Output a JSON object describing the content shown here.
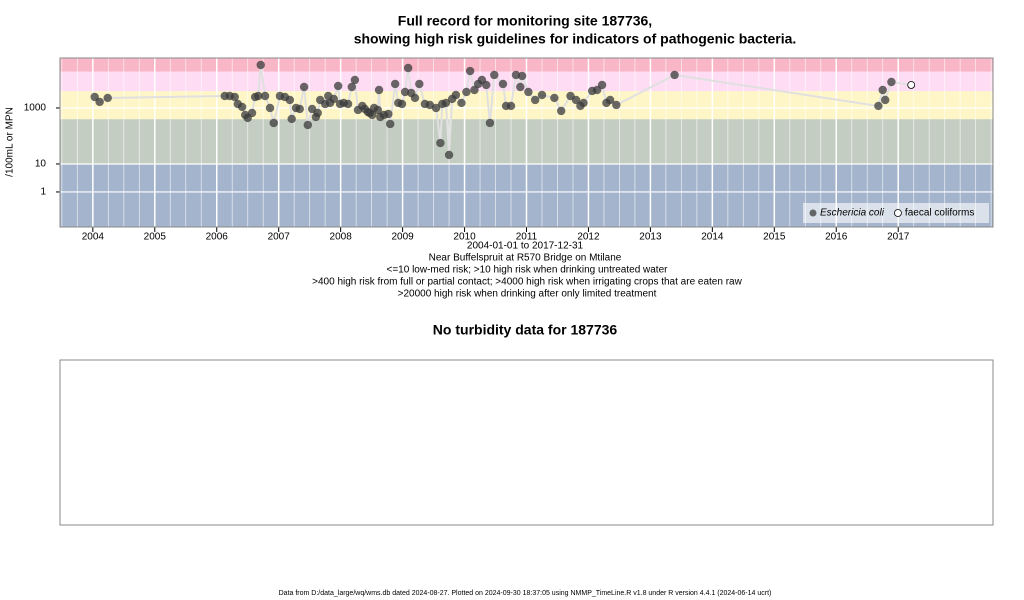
{
  "chart_data": {
    "type": "scatter",
    "title": "Full record for monitoring site 187736,",
    "subtitle": "showing high risk guidelines for indicators of pathogenic bacteria.",
    "ylabel": "/100mL or MPN",
    "xlabel": "2004-01-01 to 2017-12-31",
    "site_name": "Near Buffelspruit at R570 Bridge on Mtilane",
    "notes": [
      "<=10 low-med risk; >10 high risk when drinking untreated water",
      ">400 high risk from full or partial contact; >4000 high risk when irrigating crops that are eaten raw",
      ">20000 high risk when drinking after only limited treatment"
    ],
    "log_y": true,
    "xlim": [
      2003.47,
      2018.53
    ],
    "xticks": [
      2004,
      2005,
      2006,
      2007,
      2008,
      2009,
      2010,
      2011,
      2012,
      2013,
      2014,
      2015,
      2016,
      2017
    ],
    "ylim": [
      0.056,
      61000
    ],
    "yticks": [
      1,
      10,
      1000
    ],
    "band_thresholds": [
      10,
      400,
      4000,
      20000
    ],
    "band_colors": [
      "#a3b4cc",
      "#c4cdc2",
      "#fff6c8",
      "#fddcf4",
      "#f9b6c6"
    ],
    "legend": "bottom-right",
    "series": [
      {
        "name": "Eschericia coli",
        "color": "#3a3a3a",
        "marker": "filled",
        "x": [
          2004.03,
          2004.11,
          2004.24,
          2006.13,
          2006.21,
          2006.29,
          2006.34,
          2006.41,
          2006.46,
          2006.5,
          2006.57,
          2006.62,
          2006.67,
          2006.71,
          2006.78,
          2006.86,
          2006.92,
          2007.02,
          2007.1,
          2007.18,
          2007.21,
          2007.28,
          2007.34,
          2007.41,
          2007.47,
          2007.54,
          2007.6,
          2007.63,
          2007.67,
          2007.75,
          2007.8,
          2007.83,
          2007.89,
          2007.96,
          2007.99,
          2008.05,
          2008.12,
          2008.18,
          2008.23,
          2008.28,
          2008.35,
          2008.39,
          2008.44,
          2008.47,
          2008.51,
          2008.54,
          2008.6,
          2008.62,
          2008.64,
          2008.7,
          2008.77,
          2008.8,
          2008.88,
          2008.93,
          2008.99,
          2009.04,
          2009.09,
          2009.14,
          2009.2,
          2009.27,
          2009.36,
          2009.44,
          2009.54,
          2009.61,
          2009.64,
          2009.7,
          2009.75,
          2009.8,
          2009.86,
          2009.95,
          2010.03,
          2010.09,
          2010.16,
          2010.22,
          2010.28,
          2010.35,
          2010.41,
          2010.48,
          2010.62,
          2010.67,
          2010.75,
          2010.83,
          2010.9,
          2010.93,
          2011.03,
          2011.14,
          2011.25,
          2011.45,
          2011.56,
          2011.71,
          2011.8,
          2011.87,
          2011.92,
          2012.06,
          2012.14,
          2012.22,
          2012.29,
          2012.35,
          2012.45,
          2013.39,
          2016.68,
          2016.75,
          2016.79,
          2016.89
        ],
        "values": [
          2470,
          1640,
          2280,
          2680,
          2680,
          2470,
          1390,
          1090,
          562,
          440,
          663,
          2470,
          2680,
          34300,
          2680,
          1000,
          291,
          2680,
          2470,
          1930,
          405,
          1000,
          921,
          5620,
          247,
          921,
          477,
          663,
          1930,
          1390,
          2680,
          1510,
          2100,
          6110,
          1390,
          1510,
          1390,
          5620,
          10000,
          848,
          1180,
          921,
          720,
          663,
          562,
          1000,
          848,
          4390,
          477,
          562,
          610,
          268,
          7200,
          1510,
          1390,
          3730,
          26800,
          3430,
          2280,
          7200,
          1390,
          1280,
          1000,
          56,
          1390,
          1510,
          21,
          2100,
          2910,
          1510,
          3730,
          20900,
          4390,
          7200,
          10000,
          6630,
          291,
          15100,
          7200,
          1180,
          1180,
          15100,
          5620,
          13900,
          3730,
          1930,
          2910,
          2280,
          781,
          2680,
          1930,
          1180,
          1510,
          4050,
          4390,
          6630,
          1510,
          1930,
          1280,
          15100,
          1180,
          4390,
          1930,
          8480
        ]
      },
      {
        "name": "faecal coliforms",
        "color": "#000000",
        "marker": "open",
        "x": [
          2017.21
        ],
        "values": [
          6630
        ]
      }
    ]
  },
  "turbidity_panel": {
    "title": "No turbidity data for 187736"
  },
  "footer": "Data from D:/data_large/wq/wms.db dated 2024-08-27. Plotted on 2024-09-30 18:37:05 using NMMP_TimeLine.R v1.8 under R version 4.4.1 (2024-06-14 ucrt)"
}
